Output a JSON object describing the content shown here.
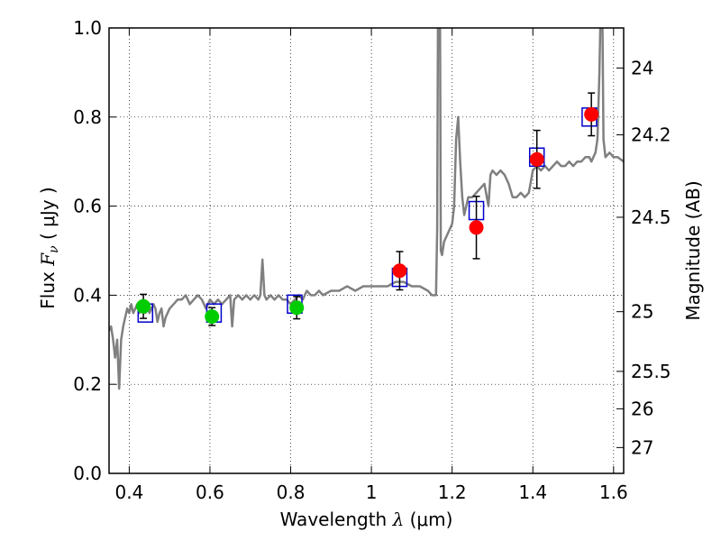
{
  "chart_data": {
    "type": "scatter",
    "xlabel": {
      "prefix": "Wavelength  ",
      "symbol": "λ",
      "unit": " (μm)"
    },
    "ylabel": {
      "prefix": "Flux  ",
      "symbol": "F",
      "subscript": "ν",
      "unit": "  ( μJy )"
    },
    "y2label": "Magnitude (AB)",
    "xlim": [
      0.35,
      1.625
    ],
    "ylim": [
      0.0,
      1.0
    ],
    "grid": true,
    "x_ticks": [
      {
        "value": 0.4,
        "label": "0.4"
      },
      {
        "value": 0.6,
        "label": "0.6"
      },
      {
        "value": 0.8,
        "label": "0.8"
      },
      {
        "value": 1.0,
        "label": "1"
      },
      {
        "value": 1.2,
        "label": "1.2"
      },
      {
        "value": 1.4,
        "label": "1.4"
      },
      {
        "value": 1.6,
        "label": "1.6"
      }
    ],
    "y_ticks": [
      {
        "value": 0.0,
        "label": "0.0"
      },
      {
        "value": 0.2,
        "label": "0.2"
      },
      {
        "value": 0.4,
        "label": "0.4"
      },
      {
        "value": 0.6,
        "label": "0.6"
      },
      {
        "value": 0.8,
        "label": "0.8"
      },
      {
        "value": 1.0,
        "label": "1.0"
      }
    ],
    "y2_ticks": [
      {
        "flux": 0.91,
        "label": "24"
      },
      {
        "flux": 0.76,
        "label": "24.2"
      },
      {
        "flux": 0.575,
        "label": "24.5"
      },
      {
        "flux": 0.363,
        "label": "25"
      },
      {
        "flux": 0.229,
        "label": "25.5"
      },
      {
        "flux": 0.145,
        "label": "26"
      },
      {
        "flux": 0.058,
        "label": "27"
      }
    ],
    "model_spectrum": {
      "color": "#808080",
      "points": [
        [
          0.35,
          0.32
        ],
        [
          0.355,
          0.33
        ],
        [
          0.36,
          0.3
        ],
        [
          0.365,
          0.26
        ],
        [
          0.37,
          0.3
        ],
        [
          0.375,
          0.19
        ],
        [
          0.38,
          0.3
        ],
        [
          0.385,
          0.33
        ],
        [
          0.39,
          0.35
        ],
        [
          0.395,
          0.37
        ],
        [
          0.4,
          0.36
        ],
        [
          0.405,
          0.38
        ],
        [
          0.41,
          0.36
        ],
        [
          0.415,
          0.37
        ],
        [
          0.42,
          0.38
        ],
        [
          0.425,
          0.36
        ],
        [
          0.43,
          0.37
        ],
        [
          0.435,
          0.38
        ],
        [
          0.44,
          0.36
        ],
        [
          0.445,
          0.38
        ],
        [
          0.45,
          0.36
        ],
        [
          0.455,
          0.37
        ],
        [
          0.46,
          0.38
        ],
        [
          0.465,
          0.37
        ],
        [
          0.47,
          0.34
        ],
        [
          0.475,
          0.36
        ],
        [
          0.48,
          0.37
        ],
        [
          0.485,
          0.33
        ],
        [
          0.49,
          0.35
        ],
        [
          0.5,
          0.37
        ],
        [
          0.51,
          0.38
        ],
        [
          0.52,
          0.39
        ],
        [
          0.53,
          0.39
        ],
        [
          0.54,
          0.4
        ],
        [
          0.55,
          0.38
        ],
        [
          0.56,
          0.39
        ],
        [
          0.57,
          0.4
        ],
        [
          0.58,
          0.39
        ],
        [
          0.59,
          0.37
        ],
        [
          0.6,
          0.39
        ],
        [
          0.61,
          0.38
        ],
        [
          0.62,
          0.39
        ],
        [
          0.63,
          0.38
        ],
        [
          0.64,
          0.39
        ],
        [
          0.65,
          0.4
        ],
        [
          0.655,
          0.33
        ],
        [
          0.66,
          0.39
        ],
        [
          0.67,
          0.4
        ],
        [
          0.68,
          0.39
        ],
        [
          0.69,
          0.4
        ],
        [
          0.7,
          0.39
        ],
        [
          0.71,
          0.4
        ],
        [
          0.72,
          0.39
        ],
        [
          0.725,
          0.4
        ],
        [
          0.73,
          0.48
        ],
        [
          0.735,
          0.4
        ],
        [
          0.74,
          0.39
        ],
        [
          0.75,
          0.4
        ],
        [
          0.76,
          0.39
        ],
        [
          0.77,
          0.4
        ],
        [
          0.78,
          0.39
        ],
        [
          0.79,
          0.39
        ],
        [
          0.8,
          0.38
        ],
        [
          0.81,
          0.39
        ],
        [
          0.82,
          0.4
        ],
        [
          0.83,
          0.39
        ],
        [
          0.84,
          0.41
        ],
        [
          0.85,
          0.4
        ],
        [
          0.86,
          0.4
        ],
        [
          0.87,
          0.41
        ],
        [
          0.88,
          0.4
        ],
        [
          0.9,
          0.41
        ],
        [
          0.92,
          0.41
        ],
        [
          0.94,
          0.42
        ],
        [
          0.96,
          0.41
        ],
        [
          0.98,
          0.42
        ],
        [
          1.0,
          0.42
        ],
        [
          1.02,
          0.42
        ],
        [
          1.04,
          0.42
        ],
        [
          1.06,
          0.43
        ],
        [
          1.08,
          0.43
        ],
        [
          1.1,
          0.42
        ],
        [
          1.12,
          0.42
        ],
        [
          1.14,
          0.41
        ],
        [
          1.15,
          0.4
        ],
        [
          1.16,
          0.4
        ],
        [
          1.163,
          0.55
        ],
        [
          1.165,
          1.05
        ],
        [
          1.17,
          1.05
        ],
        [
          1.172,
          0.5
        ],
        [
          1.175,
          0.49
        ],
        [
          1.18,
          0.52
        ],
        [
          1.19,
          0.54
        ],
        [
          1.2,
          0.56
        ],
        [
          1.205,
          0.6
        ],
        [
          1.21,
          0.75
        ],
        [
          1.215,
          0.8
        ],
        [
          1.22,
          0.7
        ],
        [
          1.225,
          0.62
        ],
        [
          1.23,
          0.58
        ],
        [
          1.24,
          0.62
        ],
        [
          1.25,
          0.62
        ],
        [
          1.26,
          0.63
        ],
        [
          1.27,
          0.64
        ],
        [
          1.28,
          0.65
        ],
        [
          1.29,
          0.6
        ],
        [
          1.295,
          0.67
        ],
        [
          1.3,
          0.68
        ],
        [
          1.31,
          0.67
        ],
        [
          1.32,
          0.68
        ],
        [
          1.33,
          0.67
        ],
        [
          1.34,
          0.65
        ],
        [
          1.35,
          0.62
        ],
        [
          1.36,
          0.62
        ],
        [
          1.37,
          0.63
        ],
        [
          1.38,
          0.62
        ],
        [
          1.39,
          0.63
        ],
        [
          1.4,
          0.68
        ],
        [
          1.41,
          0.69
        ],
        [
          1.42,
          0.68
        ],
        [
          1.43,
          0.69
        ],
        [
          1.44,
          0.68
        ],
        [
          1.45,
          0.69
        ],
        [
          1.46,
          0.7
        ],
        [
          1.47,
          0.69
        ],
        [
          1.48,
          0.69
        ],
        [
          1.49,
          0.7
        ],
        [
          1.5,
          0.69
        ],
        [
          1.51,
          0.7
        ],
        [
          1.52,
          0.7
        ],
        [
          1.53,
          0.71
        ],
        [
          1.54,
          0.71
        ],
        [
          1.545,
          0.7
        ],
        [
          1.55,
          0.71
        ],
        [
          1.555,
          0.72
        ],
        [
          1.56,
          0.75
        ],
        [
          1.565,
          0.9
        ],
        [
          1.568,
          1.05
        ],
        [
          1.572,
          1.05
        ],
        [
          1.575,
          0.75
        ],
        [
          1.58,
          0.71
        ],
        [
          1.59,
          0.72
        ],
        [
          1.6,
          0.71
        ],
        [
          1.61,
          0.71
        ],
        [
          1.625,
          0.7
        ]
      ]
    },
    "model_points": {
      "marker": "open-square",
      "color": "#0000cc",
      "points": [
        [
          0.44,
          0.36
        ],
        [
          0.61,
          0.36
        ],
        [
          0.81,
          0.38
        ],
        [
          1.07,
          0.44
        ],
        [
          1.26,
          0.59
        ],
        [
          1.41,
          0.71
        ],
        [
          1.54,
          0.8
        ]
      ]
    },
    "observed_optical": {
      "marker": "filled-circle",
      "color": "#00cc00",
      "points": [
        {
          "x": 0.435,
          "y": 0.375,
          "err": 0.027
        },
        {
          "x": 0.605,
          "y": 0.352,
          "err": 0.02
        },
        {
          "x": 0.815,
          "y": 0.372,
          "err": 0.025
        }
      ]
    },
    "observed_nir": {
      "marker": "filled-circle",
      "color": "#ff0000",
      "points": [
        {
          "x": 1.07,
          "y": 0.455,
          "err": 0.043
        },
        {
          "x": 1.26,
          "y": 0.552,
          "err": 0.07
        },
        {
          "x": 1.41,
          "y": 0.705,
          "err": 0.065
        },
        {
          "x": 1.545,
          "y": 0.806,
          "err": 0.048
        }
      ]
    }
  }
}
